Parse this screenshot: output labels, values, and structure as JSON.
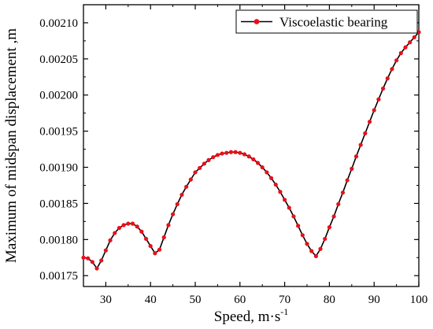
{
  "chart_data": {
    "type": "line",
    "xlabel": "Speed, m·s",
    "xlabel_superscript": "-1",
    "ylabel": "Maximum of midspan displacement ,m",
    "xlim": [
      25,
      100
    ],
    "ylim": [
      0.001735,
      0.002125
    ],
    "x_ticks": [
      30,
      40,
      50,
      60,
      70,
      80,
      90,
      100
    ],
    "x_tick_labels": [
      "30",
      "40",
      "50",
      "60",
      "70",
      "80",
      "90",
      "100"
    ],
    "y_ticks": [
      0.00175,
      0.0018,
      0.00185,
      0.0019,
      0.00195,
      0.002,
      0.00205,
      0.0021
    ],
    "y_tick_labels": [
      "0.00175",
      "0.00180",
      "0.00185",
      "0.00190",
      "0.00195",
      "0.00200",
      "0.00205",
      "0.00210"
    ],
    "grid": false,
    "legend_position": "top-right",
    "line_color": "#000000",
    "marker_color": "#e8101a",
    "series": [
      {
        "name": "Viscoelastic bearing",
        "x": [
          25,
          26,
          27,
          28,
          29,
          30,
          31,
          32,
          33,
          34,
          35,
          36,
          37,
          38,
          39,
          40,
          41,
          42,
          43,
          44,
          45,
          46,
          47,
          48,
          49,
          50,
          51,
          52,
          53,
          54,
          55,
          56,
          57,
          58,
          59,
          60,
          61,
          62,
          63,
          64,
          65,
          66,
          67,
          68,
          69,
          70,
          71,
          72,
          73,
          74,
          75,
          76,
          77,
          78,
          79,
          80,
          81,
          82,
          83,
          84,
          85,
          86,
          87,
          88,
          89,
          90,
          91,
          92,
          93,
          94,
          95,
          96,
          97,
          98,
          99,
          100
        ],
        "y": [
          0.001775,
          0.001774,
          0.001769,
          0.00176,
          0.001771,
          0.001785,
          0.001799,
          0.001809,
          0.001816,
          0.00182,
          0.001822,
          0.001822,
          0.001818,
          0.001811,
          0.001801,
          0.001791,
          0.001781,
          0.001786,
          0.001803,
          0.00182,
          0.001835,
          0.001849,
          0.001862,
          0.001873,
          0.001883,
          0.001893,
          0.001899,
          0.001905,
          0.00191,
          0.001914,
          0.001917,
          0.001919,
          0.00192,
          0.001921,
          0.001921,
          0.00192,
          0.001918,
          0.001915,
          0.001911,
          0.001906,
          0.0019,
          0.001893,
          0.001885,
          0.001876,
          0.001866,
          0.001855,
          0.001844,
          0.001832,
          0.001819,
          0.001806,
          0.001794,
          0.001784,
          0.001777,
          0.001787,
          0.001801,
          0.001817,
          0.001832,
          0.001849,
          0.001865,
          0.001882,
          0.001898,
          0.001915,
          0.001931,
          0.001947,
          0.001963,
          0.001979,
          0.001994,
          0.002009,
          0.002023,
          0.002036,
          0.002048,
          0.002058,
          0.002066,
          0.002073,
          0.00208,
          0.002087
        ]
      }
    ]
  }
}
